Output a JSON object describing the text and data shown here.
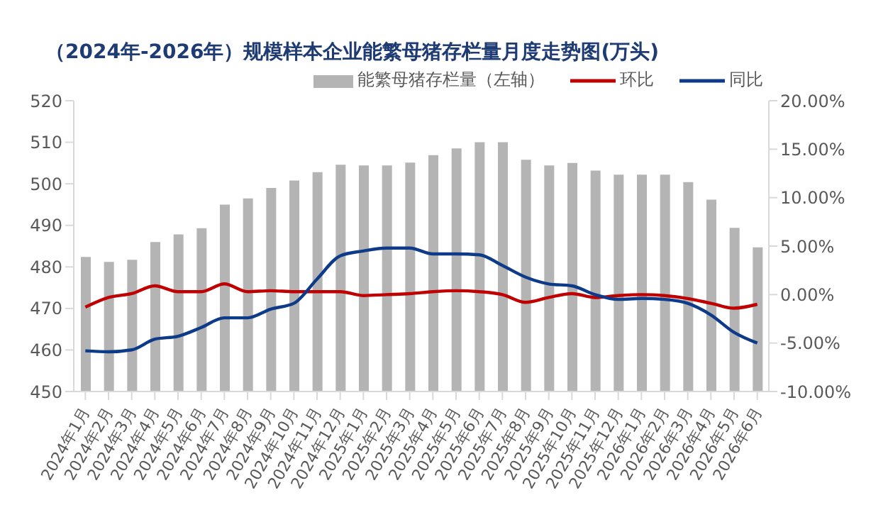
{
  "chart_data": {
    "type": "bar",
    "title": "（2024年-2026年）规模样本企业能繁母猪存栏量月度走势图(万头)",
    "categories": [
      "2024年1月",
      "2024年2月",
      "2024年3月",
      "2024年4月",
      "2024年5月",
      "2024年6月",
      "2024年7月",
      "2024年8月",
      "2024年9月",
      "2024年10月",
      "2024年11月",
      "2024年12月",
      "2025年1月",
      "2025年2月",
      "2025年3月",
      "2025年4月",
      "2025年5月",
      "2025年6月",
      "2025年7月",
      "2025年8月",
      "2025年9月",
      "2025年10月",
      "2025年11月",
      "2025年12月",
      "2026年1月",
      "2026年2月",
      "2026年3月",
      "2026年4月",
      "2026年5月",
      "2026年6月"
    ],
    "series": [
      {
        "name": "能繁母猪存栏量（左轴）",
        "color": "#b4b4b4",
        "values": [
          482.4,
          481.2,
          481.7,
          486,
          487.8,
          489.3,
          495,
          496.5,
          499,
          500.8,
          502.8,
          504.6,
          504.4,
          504.4,
          505.1,
          506.9,
          508.5,
          510,
          510,
          505.8,
          504.4,
          505,
          503.2,
          502.2,
          502.2,
          502.2,
          500.4,
          496.2,
          489.4,
          484.7
        ]
      },
      {
        "name": "环比",
        "type": "line",
        "axis": "y2",
        "color": "#c00000",
        "values": [
          -1.3,
          -0.3,
          0.1,
          0.9,
          0.3,
          0.3,
          1.1,
          0.3,
          0.4,
          0.3,
          0.3,
          0.3,
          -0.1,
          0.0,
          0.1,
          0.3,
          0.4,
          0.3,
          0.0,
          -0.8,
          -0.3,
          0.1,
          -0.3,
          -0.1,
          0.0,
          -0.1,
          -0.4,
          -0.9,
          -1.4,
          -1.0
        ]
      },
      {
        "name": "同比",
        "type": "line",
        "axis": "y2",
        "color": "#0e3a8a",
        "values": [
          -5.8,
          -5.9,
          -5.7,
          -4.6,
          -4.3,
          -3.4,
          -2.4,
          -2.4,
          -1.5,
          -0.9,
          1.6,
          4.0,
          4.5,
          4.8,
          4.8,
          4.2,
          4.2,
          4.1,
          3.0,
          1.8,
          1.1,
          0.9,
          0.0,
          -0.5,
          -0.4,
          -0.5,
          -0.9,
          -2.1,
          -3.9,
          -5.0
        ]
      }
    ],
    "ylim": [
      450,
      520
    ],
    "yticks": [
      450,
      460,
      470,
      480,
      490,
      500,
      510,
      520
    ],
    "y2lim": [
      -10,
      20
    ],
    "y2ticks": [
      {
        "value": -10,
        "label": "-10.00%"
      },
      {
        "value": -5,
        "label": "-5.00%"
      },
      {
        "value": 0,
        "label": "0.00%"
      },
      {
        "value": 5,
        "label": "5.00%"
      },
      {
        "value": 10,
        "label": "10.00%"
      },
      {
        "value": 15,
        "label": "15.00%"
      },
      {
        "value": 20,
        "label": "20.00%"
      }
    ],
    "grid": false,
    "legend": "top right",
    "marker": "none",
    "line_style": "solid"
  }
}
